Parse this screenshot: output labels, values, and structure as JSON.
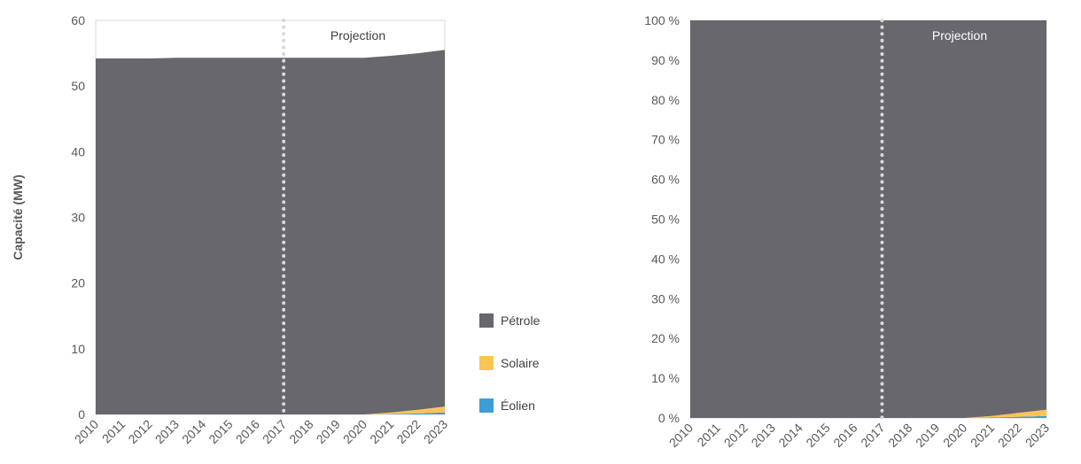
{
  "colors": {
    "petrole": "#67676d",
    "solaire": "#fcc454",
    "eolien": "#3c9ed5",
    "projection_line": "#d9d9d9"
  },
  "legend": [
    {
      "key": "petrole",
      "label": "Pétrole",
      "color": "#67676d"
    },
    {
      "key": "solaire",
      "label": "Solaire",
      "color": "#fcc454"
    },
    {
      "key": "eolien",
      "label": "Éolien",
      "color": "#3c9ed5"
    }
  ],
  "chart_data": [
    {
      "type": "area",
      "stacked": true,
      "title": "",
      "xlabel": "",
      "ylabel": "Capacité (MW)",
      "ylim": [
        0,
        60
      ],
      "yticks": [
        "0",
        "10",
        "20",
        "30",
        "40",
        "50",
        "60"
      ],
      "categories": [
        "2010",
        "2011",
        "2012",
        "2013",
        "2014",
        "2015",
        "2016",
        "2017",
        "2018",
        "2019",
        "2020",
        "2021",
        "2022",
        "2023"
      ],
      "projection_start": "2017",
      "annotation": "Projection",
      "series": [
        {
          "name": "Éolien",
          "values": [
            0,
            0,
            0,
            0,
            0,
            0,
            0,
            0,
            0,
            0,
            0,
            0.05,
            0.15,
            0.3
          ]
        },
        {
          "name": "Solaire",
          "values": [
            0,
            0,
            0,
            0,
            0,
            0,
            0,
            0,
            0,
            0,
            0,
            0.25,
            0.55,
            0.9
          ]
        },
        {
          "name": "Pétrole",
          "values": [
            54.2,
            54.2,
            54.2,
            54.3,
            54.3,
            54.3,
            54.3,
            54.3,
            54.3,
            54.3,
            54.3,
            54.3,
            54.3,
            54.3
          ]
        }
      ]
    },
    {
      "type": "area",
      "stacked": true,
      "percent": true,
      "title": "",
      "xlabel": "",
      "ylabel": "",
      "ylim": [
        0,
        100
      ],
      "yticks": [
        "0 %",
        "10 %",
        "20 %",
        "30 %",
        "40 %",
        "50 %",
        "60 %",
        "70 %",
        "80 %",
        "90 %",
        "100 %"
      ],
      "categories": [
        "2010",
        "2011",
        "2012",
        "2013",
        "2014",
        "2015",
        "2016",
        "2017",
        "2018",
        "2019",
        "2020",
        "2021",
        "2022",
        "2023"
      ],
      "projection_start": "2017",
      "annotation": "Projection",
      "series": [
        {
          "name": "Éolien",
          "values": [
            0,
            0,
            0,
            0,
            0,
            0,
            0,
            0,
            0,
            0,
            0,
            0.1,
            0.3,
            0.5
          ]
        },
        {
          "name": "Solaire",
          "values": [
            0,
            0,
            0,
            0,
            0,
            0,
            0,
            0,
            0,
            0,
            0,
            0.4,
            1.0,
            1.6
          ]
        },
        {
          "name": "Pétrole",
          "values": [
            100,
            100,
            100,
            100,
            100,
            100,
            100,
            100,
            100,
            100,
            100,
            99.5,
            98.7,
            97.9
          ]
        }
      ]
    }
  ]
}
